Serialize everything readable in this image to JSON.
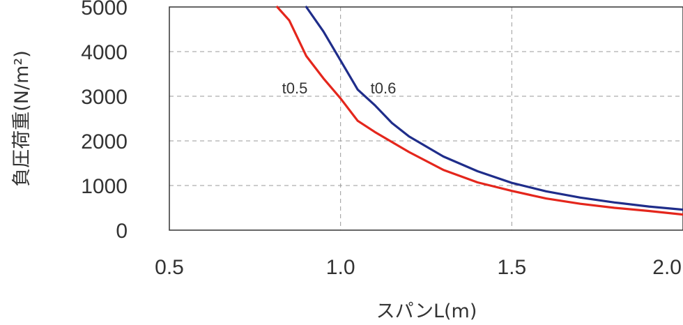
{
  "chart_data": {
    "type": "line",
    "xlabel": "スパンL(m)",
    "ylabel": "負圧荷重(N/m²)",
    "xlim": [
      0.5,
      2.0
    ],
    "ylim": [
      0,
      5000
    ],
    "xticks": [
      "0.5",
      "1.0",
      "1.5",
      "2.0"
    ],
    "yticks": [
      "0",
      "1000",
      "2000",
      "3000",
      "4000",
      "5000"
    ],
    "grid": true,
    "series": [
      {
        "name": "t0.5",
        "color": "#e4261c",
        "x": [
          0.815,
          0.85,
          0.9,
          0.95,
          1.0,
          1.05,
          1.1,
          1.2,
          1.3,
          1.4,
          1.5,
          1.6,
          1.7,
          1.8,
          1.9,
          2.0
        ],
        "y": [
          5000,
          4700,
          3900,
          3400,
          2950,
          2450,
          2200,
          1750,
          1350,
          1070,
          880,
          710,
          590,
          500,
          430,
          350
        ]
      },
      {
        "name": "t0.6",
        "color": "#1f2d8a",
        "x": [
          0.9,
          0.95,
          1.0,
          1.05,
          1.1,
          1.15,
          1.2,
          1.3,
          1.4,
          1.5,
          1.6,
          1.7,
          1.8,
          1.9,
          2.0
        ],
        "y": [
          5000,
          4450,
          3800,
          3150,
          2800,
          2400,
          2100,
          1650,
          1320,
          1060,
          870,
          730,
          620,
          530,
          460
        ]
      }
    ]
  }
}
